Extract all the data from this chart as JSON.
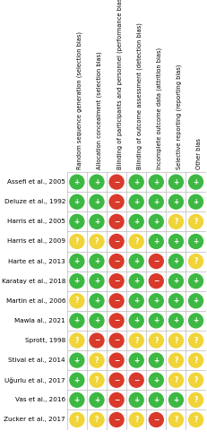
{
  "studies": [
    "Assefi et al., 2005",
    "Deluze et al., 1992",
    "Harris et al., 2005",
    "Harris et al., 2009",
    "Harte et al., 2013",
    "Karatay et al., 2018",
    "Martin et al., 2006",
    "Mawla al., 2021",
    "Sprott, 1998",
    "Stival et al., 2014",
    "Uğurlu et al., 2017",
    "Vas et al., 2016",
    "Zucker et al., 2017"
  ],
  "columns": [
    "Random sequence generation (selection bias)",
    "Allocation concealment (selection bias)",
    "Blinding of participants and personnel (performance bias)",
    "Blinding of outcome assessment (detection bias)",
    "Incomplete outcome data (attrition bias)",
    "Selective reporting (reporting bias)",
    "Other bias"
  ],
  "ratings": [
    [
      "+",
      "+",
      "-",
      "+",
      "+",
      "+",
      "+"
    ],
    [
      "+",
      "+",
      "-",
      "+",
      "+",
      "+",
      "+"
    ],
    [
      "+",
      "+",
      "-",
      "+",
      "+",
      "?",
      "?"
    ],
    [
      "?",
      "?",
      "-",
      "?",
      "+",
      "+",
      "+"
    ],
    [
      "+",
      "+",
      "-",
      "+",
      "-",
      "+",
      "?"
    ],
    [
      "+",
      "+",
      "-",
      "+",
      "-",
      "+",
      "+"
    ],
    [
      "?",
      "+",
      "-",
      "+",
      "+",
      "+",
      "+"
    ],
    [
      "+",
      "+",
      "-",
      "+",
      "+",
      "+",
      "+"
    ],
    [
      "?",
      "-",
      "-",
      "?",
      "?",
      "?",
      "?"
    ],
    [
      "+",
      "?",
      "-",
      "+",
      "+",
      "?",
      "?"
    ],
    [
      "+",
      "?",
      "-",
      "-",
      "+",
      "?",
      "?"
    ],
    [
      "+",
      "+",
      "-",
      "+",
      "+",
      "+",
      "?"
    ],
    [
      "?",
      "?",
      "-",
      "?",
      "-",
      "?",
      "?"
    ]
  ],
  "color_map": {
    "+": "#3cb843",
    "-": "#d93a2b",
    "?": "#f0d438"
  },
  "symbol_map": {
    "+": "+",
    "-": "−",
    "?": "?"
  },
  "bg_color": "#ffffff",
  "grid_color": "#bbbbbb",
  "study_label_fontsize": 5.2,
  "header_fontsize": 4.8,
  "fig_width": 2.31,
  "fig_height": 5.0,
  "dpi": 100
}
